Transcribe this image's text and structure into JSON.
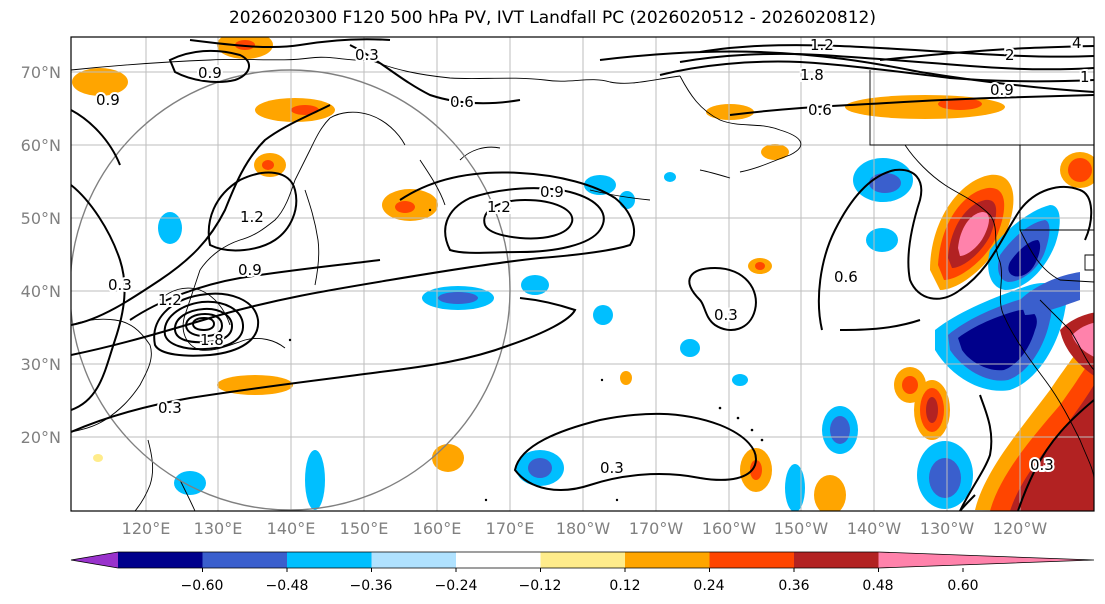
{
  "title": "2026020300 F120 500 hPa PV, IVT Landfall PC (2026020512 - 2026020812)",
  "lat_labels": [
    "70°N",
    "60°N",
    "50°N",
    "40°N",
    "30°N",
    "20°N"
  ],
  "lon_labels": [
    "120°E",
    "130°E",
    "140°E",
    "150°E",
    "160°E",
    "170°E",
    "180°W",
    "170°W",
    "160°W",
    "150°W",
    "140°W",
    "130°W",
    "120°W"
  ],
  "colorbar": {
    "ticks": [
      "−0.60",
      "−0.48",
      "−0.36",
      "−0.24",
      "−0.12",
      "0.12",
      "0.24",
      "0.36",
      "0.48",
      "0.60"
    ],
    "colors": [
      "#9932cc",
      "#00008b",
      "#3a5fcd",
      "#00bfff",
      "#b0e2ff",
      "#ffffff",
      "#ffec8b",
      "#ffa500",
      "#ff4500",
      "#b22222",
      "#ff82ab"
    ]
  },
  "contour_labels": [
    "0.3",
    "0.3",
    "0.3",
    "0.3",
    "0.3",
    "0.3",
    "0.6",
    "0.6",
    "0.6",
    "0.9",
    "0.9",
    "0.9",
    "0.9",
    "0.9",
    "1.2",
    "1.2",
    "1.2",
    "1.8",
    "1.8",
    "2",
    "4",
    "1",
    "1.2"
  ]
}
